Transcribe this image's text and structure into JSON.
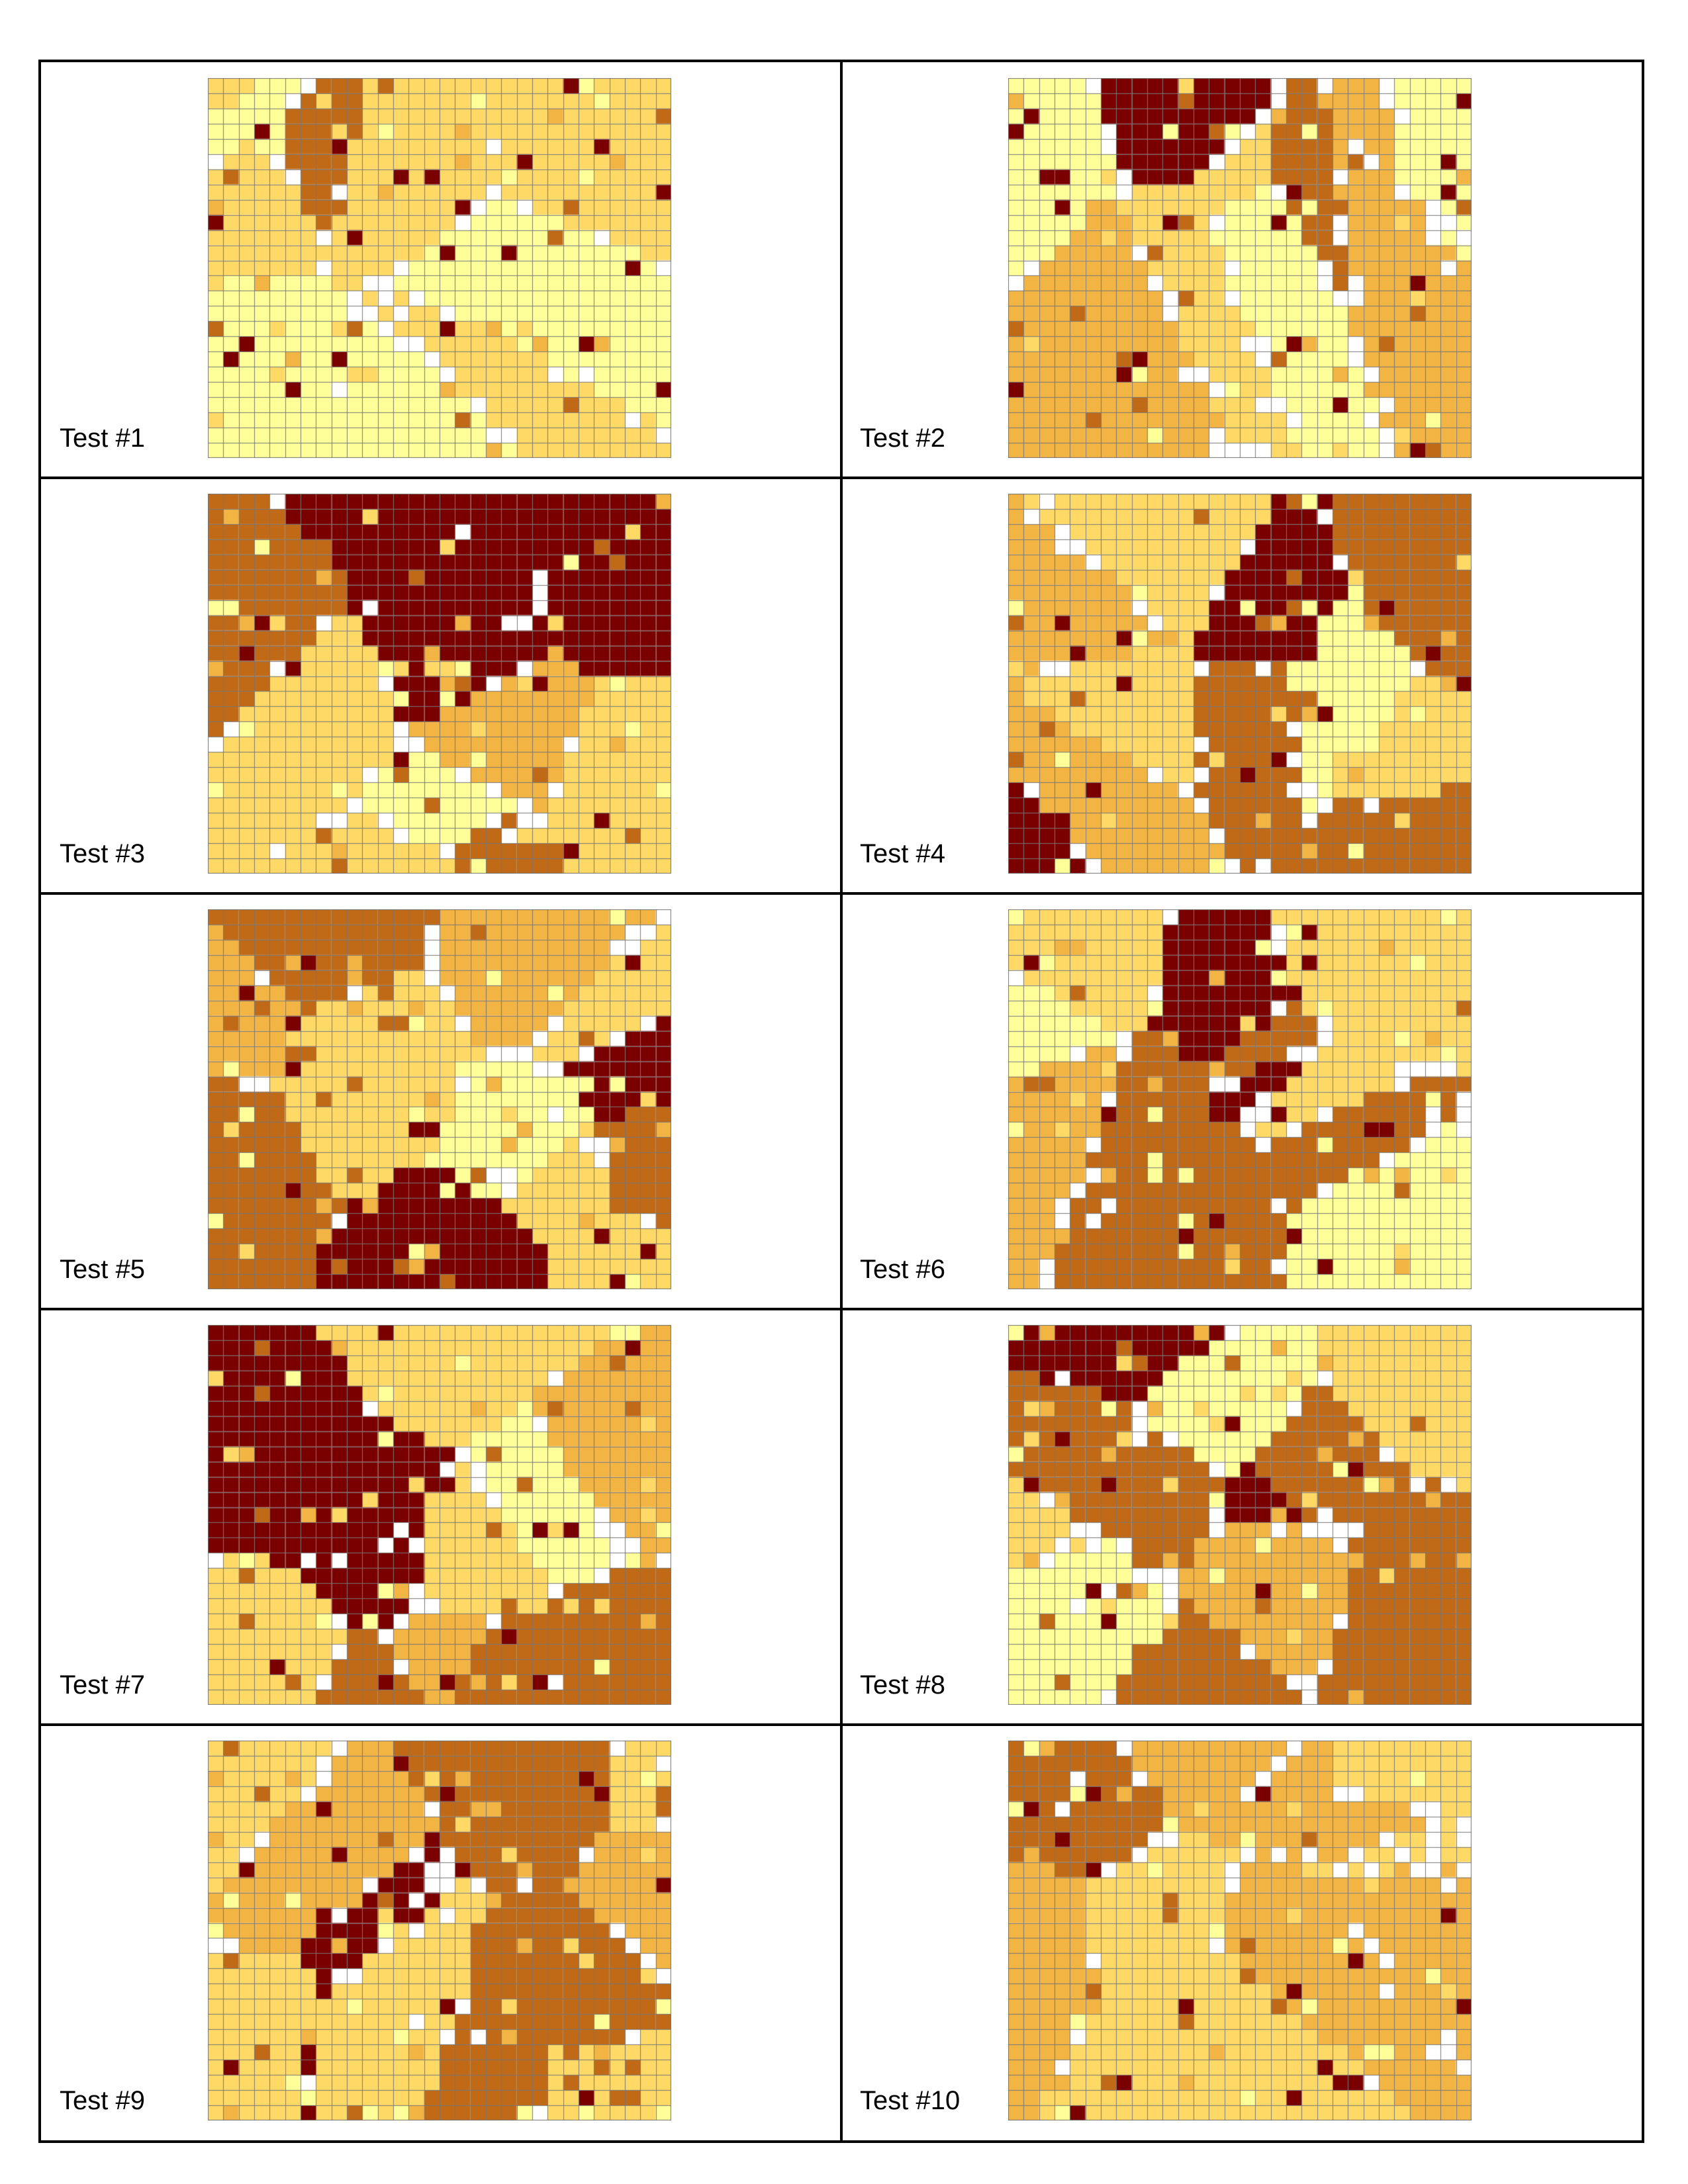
{
  "palette": {
    "white": "#ffffff",
    "pale_yellow": "#ffff99",
    "light_orange": "#ffd966",
    "orange": "#f2b443",
    "dark_orange": "#c06a17",
    "brown": "#7a0000",
    "grid_line": "#777777"
  },
  "grid": {
    "columns": 30,
    "rows": 25
  },
  "panels": [
    {
      "label": "Test #1"
    },
    {
      "label": "Test #2"
    },
    {
      "label": "Test #3"
    },
    {
      "label": "Test #4"
    },
    {
      "label": "Test #5"
    },
    {
      "label": "Test #6"
    },
    {
      "label": "Test #7"
    },
    {
      "label": "Test #8"
    },
    {
      "label": "Test #9"
    },
    {
      "label": "Test #10"
    }
  ]
}
